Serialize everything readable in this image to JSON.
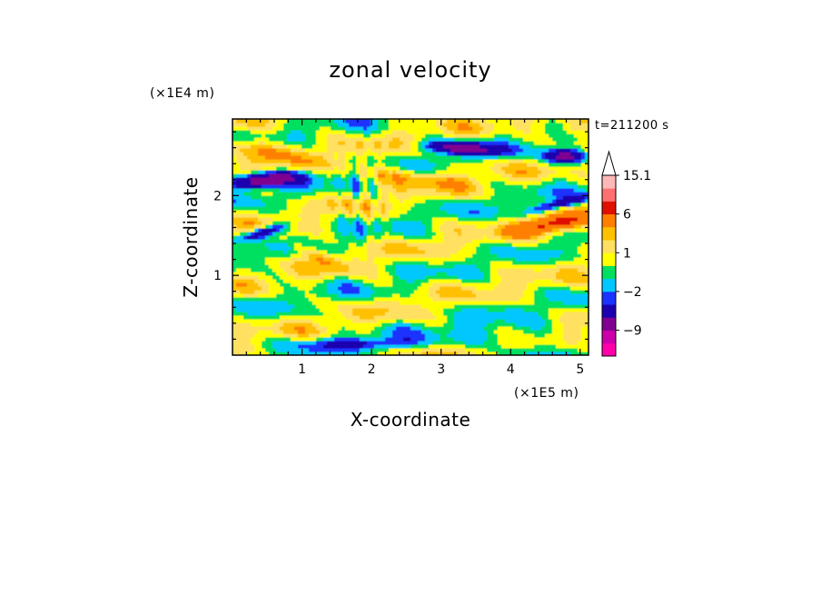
{
  "chart_data": {
    "type": "heatmap",
    "title": "zonal velocity",
    "xlabel": "X-coordinate",
    "ylabel": "Z-coordinate",
    "x_unit_label": "(×1E5 m)",
    "y_unit_label": "(×1E4 m)",
    "time_label": "t=211200 s",
    "xlim": [
      0,
      5.12
    ],
    "ylim": [
      0,
      2.96
    ],
    "x_ticks": [
      "1",
      "2",
      "3",
      "4",
      "5"
    ],
    "y_ticks": [
      "1",
      "2"
    ],
    "colorbar": {
      "labels": [
        "15.1",
        "6",
        "1",
        "−2",
        "−9"
      ],
      "levels": [
        -15,
        -12,
        -9,
        -6,
        -3,
        -2,
        -1,
        0,
        1,
        2,
        3,
        6,
        9,
        12,
        15.1
      ],
      "colors": [
        "#ff00aa",
        "#cc00aa",
        "#800090",
        "#1a00b0",
        "#1a33ff",
        "#00c8ff",
        "#00e060",
        "#ffff00",
        "#ffe060",
        "#ffc000",
        "#ff8000",
        "#e01000",
        "#ff7070",
        "#ffb8b8",
        "#ffffff"
      ],
      "extend_max": true
    },
    "field_description": "2D contour field of zonal velocity with banded tilted layers; dominant values between −2 and 3, strong negative (blue) cores near upper left and upper right, positive (orange) bands near top."
  }
}
